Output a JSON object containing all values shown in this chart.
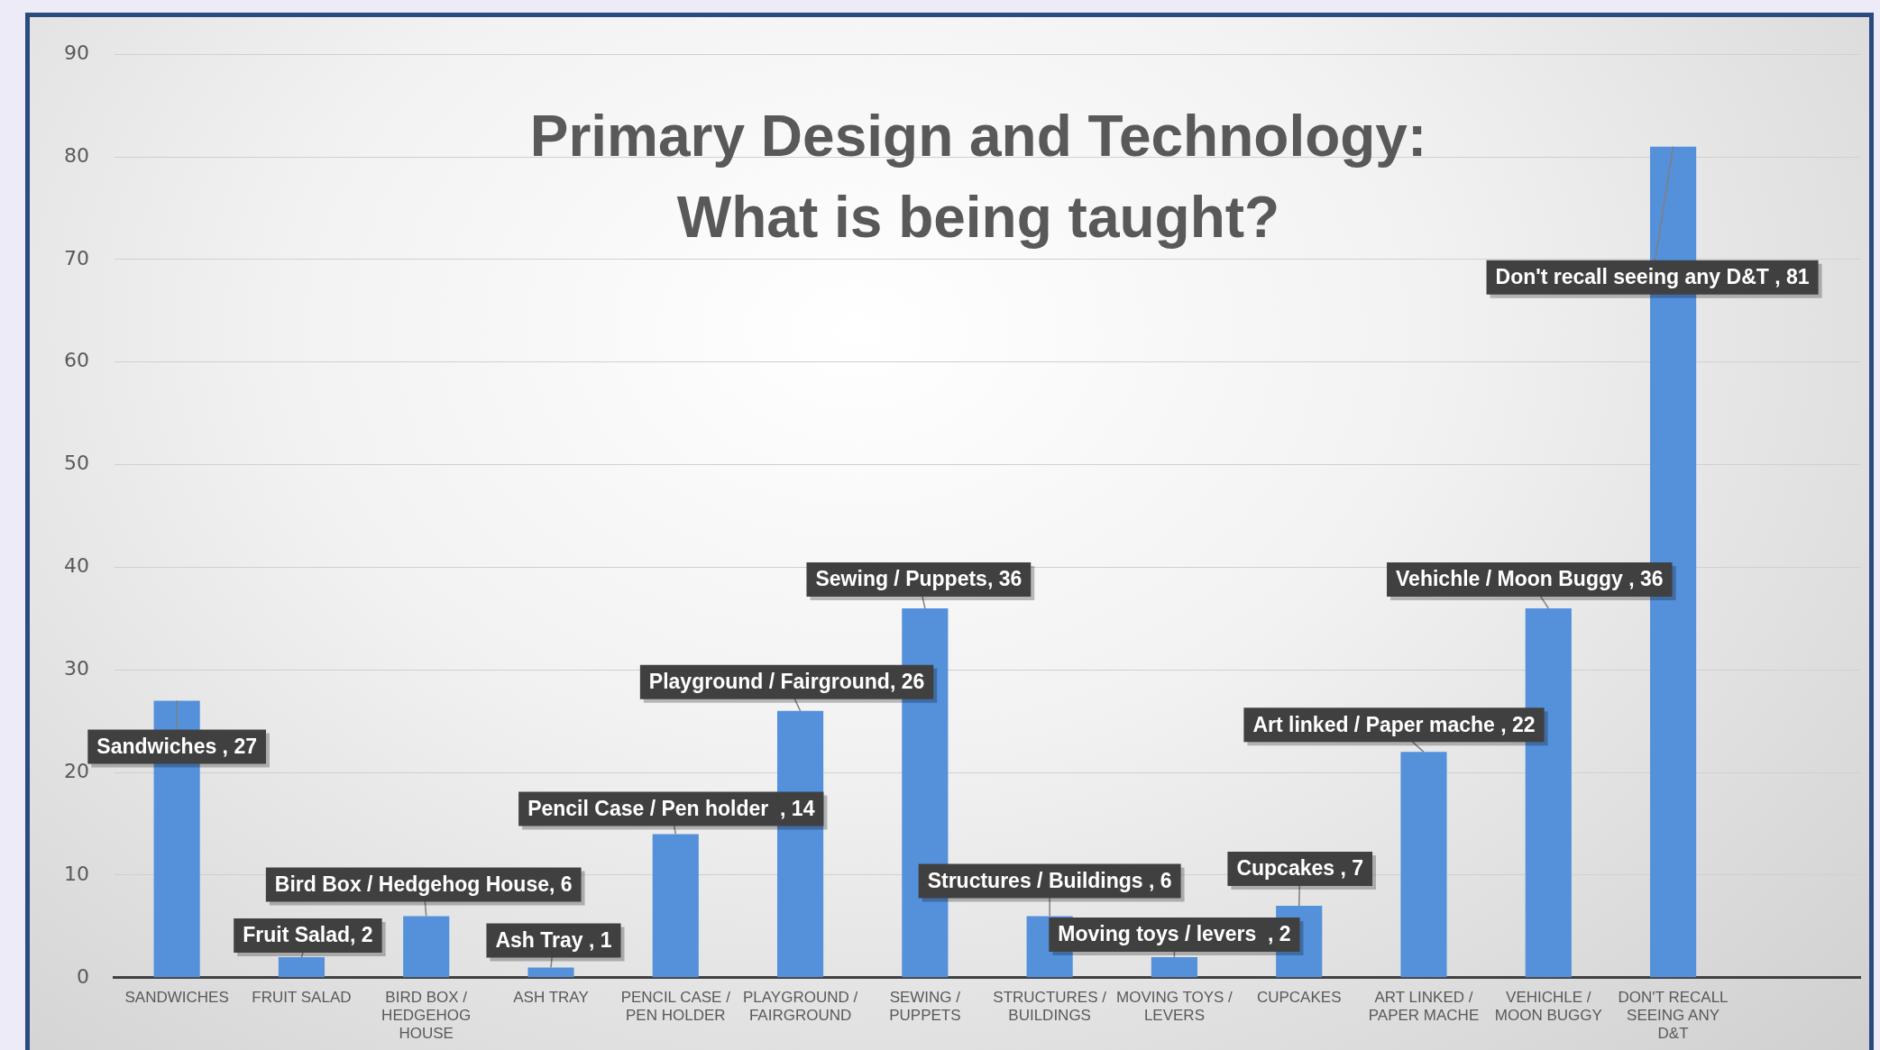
{
  "chart_data": {
    "type": "bar",
    "title": "Primary Design and Technology: What is being taught?",
    "categories": [
      "SANDWICHES",
      "FRUIT SALAD",
      "BIRD BOX / HEDGEHOG HOUSE",
      "ASH TRAY",
      "PENCIL CASE / PEN HOLDER",
      "PLAYGROUND / FAIRGROUND",
      "SEWING / PUPPETS",
      "STRUCTURES / BUILDINGS",
      "MOVING TOYS / LEVERS",
      "CUPCAKES",
      "ART LINKED / PAPER MACHE",
      "VEHICHLE / MOON BUGGY",
      "DON'T RECALL SEEING ANY D&T",
      null
    ],
    "values": [
      27,
      2,
      6,
      1,
      14,
      26,
      36,
      6,
      2,
      7,
      22,
      36,
      81,
      null
    ],
    "value_labels": [
      "Sandwiches , 27",
      "Fruit Salad, 2",
      "Bird Box / Hedgehog House, 6",
      "Ash Tray , 1",
      "Pencil Case / Pen holder  , 14",
      "Playground / Fairground, 26",
      "Sewing / Puppets, 36",
      "Structures / Buildings , 6",
      "Moving toys / levers  , 2",
      "Cupcakes , 7",
      "Art linked / Paper mache , 22",
      "Vehichle / Moon Buggy , 36",
      "Don't recall seeing any D&T , 81",
      null
    ],
    "color": "#5590db",
    "ylim": [
      0,
      90
    ],
    "yticks": [
      0,
      10,
      20,
      30,
      40,
      50,
      60,
      70,
      80,
      90
    ],
    "grid": "y",
    "legend": false
  }
}
